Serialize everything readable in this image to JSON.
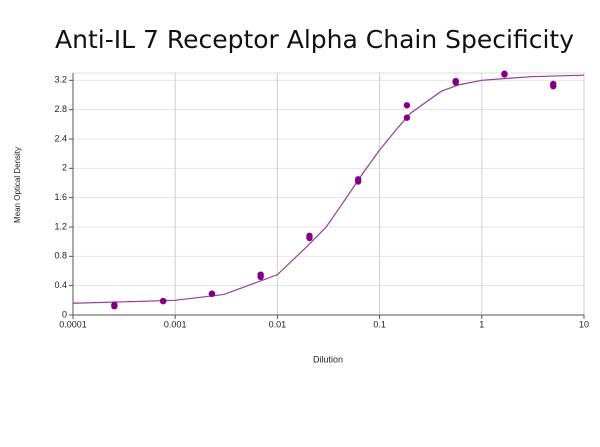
{
  "chart_data": {
    "type": "scatter",
    "title": "Anti-IL 7 Receptor Alpha Chain Specificity",
    "x_label": "Dilution",
    "y_label": "Mean Optical Density",
    "x_scale": "log",
    "xlim": [
      0.0001,
      10
    ],
    "xticks": [
      0.0001,
      0.001,
      0.01,
      0.1,
      1,
      10
    ],
    "ylim": [
      0,
      3.3
    ],
    "yticks": [
      0,
      0.4,
      0.8,
      1.2,
      1.6,
      2,
      2.4,
      2.8,
      3.2
    ],
    "grid": true,
    "series": [
      {
        "color": "#800080",
        "x": [
          0.000254,
          0.000254,
          0.000762,
          0.000762,
          0.00229,
          0.00229,
          0.00686,
          0.00686,
          0.0206,
          0.0206,
          0.0617,
          0.0617,
          0.185,
          0.185,
          0.556,
          0.556,
          1.667,
          1.667,
          5,
          5
        ],
        "values": [
          0.14,
          0.12,
          0.19,
          0.19,
          0.29,
          0.29,
          0.55,
          0.52,
          1.08,
          1.05,
          1.85,
          1.82,
          2.86,
          2.69,
          3.19,
          3.17,
          3.29,
          3.28,
          3.15,
          3.12
        ]
      }
    ],
    "fit": {
      "color": "#9a3a9a",
      "x": [
        0.0001,
        0.001,
        0.003,
        0.01,
        0.02,
        0.03,
        0.04,
        0.07,
        0.1,
        0.15,
        0.2,
        0.4,
        0.6,
        1,
        3,
        10
      ],
      "values": [
        0.16,
        0.2,
        0.28,
        0.55,
        0.95,
        1.2,
        1.45,
        1.95,
        2.25,
        2.55,
        2.75,
        3.05,
        3.14,
        3.2,
        3.25,
        3.27
      ]
    }
  }
}
